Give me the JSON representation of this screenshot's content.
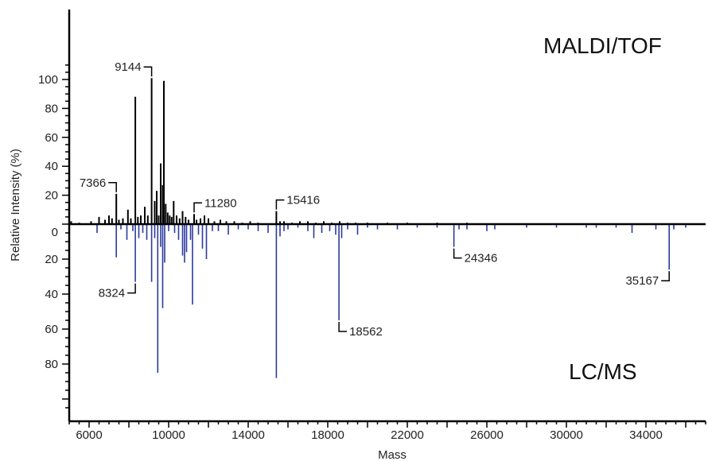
{
  "chart_data": {
    "type": "bar",
    "xlabel": "Mass",
    "ylabel": "Relative Intensity (%)",
    "xlim": [
      5000,
      37000
    ],
    "ylim_top": [
      0,
      110
    ],
    "ylim_bottom": [
      0,
      105
    ],
    "x_ticks": [
      6000,
      10000,
      14000,
      18000,
      22000,
      26000,
      30000,
      34000
    ],
    "y_ticks_top": [
      20,
      40,
      60,
      80,
      100
    ],
    "y_ticks_bottom": [
      0,
      20,
      40,
      60,
      80
    ],
    "colors": {
      "top": "#000000",
      "bottom": "#2b3a9c"
    },
    "series": [
      {
        "name": "MALDI/TOF",
        "direction": "up",
        "peaks": [
          [
            5100,
            2
          ],
          [
            5500,
            1
          ],
          [
            6100,
            2
          ],
          [
            6500,
            5
          ],
          [
            6800,
            3
          ],
          [
            7000,
            6
          ],
          [
            7150,
            4
          ],
          [
            7366,
            21
          ],
          [
            7500,
            3
          ],
          [
            7700,
            4
          ],
          [
            7950,
            10
          ],
          [
            8100,
            4
          ],
          [
            8324,
            88
          ],
          [
            8450,
            5
          ],
          [
            8600,
            6
          ],
          [
            8800,
            12
          ],
          [
            8950,
            6
          ],
          [
            9144,
            101
          ],
          [
            9300,
            16
          ],
          [
            9400,
            23
          ],
          [
            9500,
            6
          ],
          [
            9600,
            42
          ],
          [
            9700,
            27
          ],
          [
            9760,
            99
          ],
          [
            9850,
            14
          ],
          [
            9950,
            8
          ],
          [
            10050,
            6
          ],
          [
            10150,
            5
          ],
          [
            10250,
            16
          ],
          [
            10400,
            6
          ],
          [
            10550,
            4
          ],
          [
            10700,
            9
          ],
          [
            10850,
            5
          ],
          [
            11000,
            3
          ],
          [
            11280,
            7
          ],
          [
            11400,
            3
          ],
          [
            11600,
            4
          ],
          [
            11800,
            6
          ],
          [
            12000,
            4
          ],
          [
            12300,
            2
          ],
          [
            12600,
            3
          ],
          [
            12900,
            2
          ],
          [
            13300,
            2
          ],
          [
            13700,
            1
          ],
          [
            14100,
            2
          ],
          [
            14500,
            1
          ],
          [
            15416,
            9
          ],
          [
            15600,
            2
          ],
          [
            15800,
            2
          ],
          [
            16200,
            1
          ],
          [
            16600,
            2
          ],
          [
            17000,
            2
          ],
          [
            17400,
            1
          ],
          [
            17800,
            2
          ],
          [
            18200,
            1
          ],
          [
            18600,
            2
          ],
          [
            19000,
            1
          ],
          [
            19400,
            1
          ],
          [
            20000,
            1
          ],
          [
            21000,
            1
          ],
          [
            22000,
            1
          ],
          [
            23500,
            1
          ],
          [
            25000,
            1
          ]
        ]
      },
      {
        "name": "LC/MS",
        "direction": "down",
        "peaks": [
          [
            6400,
            5
          ],
          [
            7366,
            19
          ],
          [
            7600,
            3
          ],
          [
            7900,
            9
          ],
          [
            8200,
            4
          ],
          [
            8324,
            33
          ],
          [
            8500,
            8
          ],
          [
            8700,
            5
          ],
          [
            8900,
            9
          ],
          [
            9144,
            33
          ],
          [
            9300,
            8
          ],
          [
            9450,
            85
          ],
          [
            9600,
            13
          ],
          [
            9700,
            48
          ],
          [
            9800,
            22
          ],
          [
            10000,
            4
          ],
          [
            10300,
            5
          ],
          [
            10500,
            9
          ],
          [
            10700,
            18
          ],
          [
            10800,
            22
          ],
          [
            10900,
            16
          ],
          [
            11100,
            9
          ],
          [
            11200,
            46
          ],
          [
            11500,
            6
          ],
          [
            11700,
            14
          ],
          [
            11900,
            20
          ],
          [
            12200,
            4
          ],
          [
            12500,
            4
          ],
          [
            13000,
            6
          ],
          [
            13500,
            3
          ],
          [
            14000,
            3
          ],
          [
            14500,
            4
          ],
          [
            15000,
            5
          ],
          [
            15416,
            88
          ],
          [
            15600,
            7
          ],
          [
            15800,
            4
          ],
          [
            16000,
            3
          ],
          [
            16500,
            2
          ],
          [
            17000,
            4
          ],
          [
            17300,
            8
          ],
          [
            17700,
            5
          ],
          [
            18100,
            4
          ],
          [
            18400,
            6
          ],
          [
            18562,
            55
          ],
          [
            18700,
            8
          ],
          [
            19000,
            3
          ],
          [
            19500,
            6
          ],
          [
            20000,
            2
          ],
          [
            20500,
            3
          ],
          [
            21500,
            3
          ],
          [
            22500,
            2
          ],
          [
            23500,
            2
          ],
          [
            24346,
            13
          ],
          [
            24600,
            3
          ],
          [
            25000,
            3
          ],
          [
            26000,
            4
          ],
          [
            26400,
            3
          ],
          [
            28000,
            2
          ],
          [
            29500,
            2
          ],
          [
            31000,
            2
          ],
          [
            31500,
            2
          ],
          [
            32500,
            2
          ],
          [
            33300,
            5
          ],
          [
            34500,
            3
          ],
          [
            35167,
            26
          ],
          [
            35400,
            3
          ],
          [
            36000,
            2
          ]
        ]
      }
    ],
    "annotations": [
      {
        "text": "9144",
        "x": 9144,
        "series": "top",
        "side": "left"
      },
      {
        "text": "7366",
        "x": 7366,
        "series": "top",
        "side": "left"
      },
      {
        "text": "11280",
        "x": 11280,
        "series": "top",
        "side": "right"
      },
      {
        "text": "15416",
        "x": 15416,
        "series": "top",
        "side": "right"
      },
      {
        "text": "8324",
        "x": 8324,
        "series": "bottom",
        "side": "left"
      },
      {
        "text": "24346",
        "x": 24346,
        "series": "bottom",
        "side": "right"
      },
      {
        "text": "18562",
        "x": 18562,
        "series": "bottom",
        "side": "right"
      },
      {
        "text": "35167",
        "x": 35167,
        "series": "bottom",
        "side": "left"
      }
    ],
    "panel_labels": {
      "top": "MALDI/TOF",
      "bottom": "LC/MS"
    }
  }
}
